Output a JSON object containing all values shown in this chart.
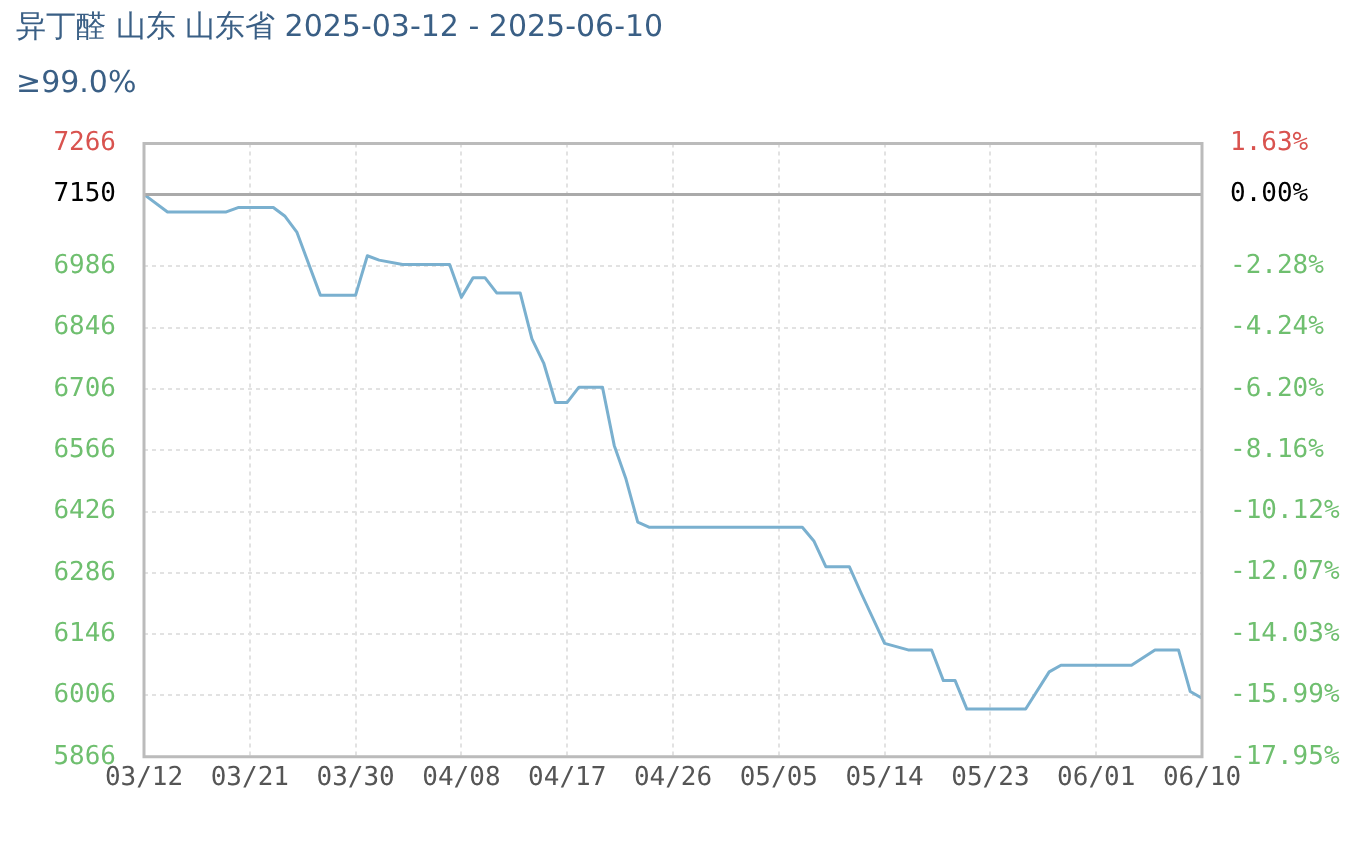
{
  "chart_data": {
    "type": "line",
    "title": "异丁醛 山东 山东省 2025-03-12 - 2025-06-10",
    "subtitle": "≥99.0%",
    "x": [
      "2025-03-12",
      "2025-03-14",
      "2025-03-19",
      "2025-03-20",
      "2025-03-23",
      "2025-03-24",
      "2025-03-25",
      "2025-03-27",
      "2025-03-30",
      "2025-03-31",
      "2025-04-01",
      "2025-04-03",
      "2025-04-07",
      "2025-04-08",
      "2025-04-09",
      "2025-04-10",
      "2025-04-11",
      "2025-04-13",
      "2025-04-14",
      "2025-04-15",
      "2025-04-16",
      "2025-04-17",
      "2025-04-18",
      "2025-04-20",
      "2025-04-21",
      "2025-04-22",
      "2025-04-23",
      "2025-04-24",
      "2025-05-07",
      "2025-05-08",
      "2025-05-09",
      "2025-05-11",
      "2025-05-12",
      "2025-05-14",
      "2025-05-16",
      "2025-05-18",
      "2025-05-19",
      "2025-05-20",
      "2025-05-21",
      "2025-05-26",
      "2025-05-28",
      "2025-05-29",
      "2025-06-04",
      "2025-06-06",
      "2025-06-08",
      "2025-06-09",
      "2025-06-10"
    ],
    "series": [
      {
        "color": "#7ab0cf",
        "values": [
          7150,
          7110,
          7110,
          7120,
          7120,
          7100,
          7064,
          6920,
          6920,
          7010,
          7000,
          6990,
          6990,
          6915,
          6960,
          6960,
          6925,
          6925,
          6820,
          6765,
          6675,
          6675,
          6710,
          6710,
          6577,
          6500,
          6402,
          6390,
          6390,
          6358,
          6300,
          6300,
          6240,
          6125,
          6110,
          6110,
          6040,
          6040,
          5975,
          5975,
          6060,
          6075,
          6075,
          6110,
          6110,
          6015,
          6000
        ]
      }
    ],
    "xlim": [
      "2025-03-12",
      "2025-06-10"
    ],
    "xticks": [
      {
        "value": "2025-03-12",
        "label": "03/12"
      },
      {
        "value": "2025-03-21",
        "label": "03/21"
      },
      {
        "value": "2025-03-30",
        "label": "03/30"
      },
      {
        "value": "2025-04-08",
        "label": "04/08"
      },
      {
        "value": "2025-04-17",
        "label": "04/17"
      },
      {
        "value": "2025-04-26",
        "label": "04/26"
      },
      {
        "value": "2025-05-05",
        "label": "05/05"
      },
      {
        "value": "2025-05-14",
        "label": "05/14"
      },
      {
        "value": "2025-05-23",
        "label": "05/23"
      },
      {
        "value": "2025-06-01",
        "label": "06/01"
      },
      {
        "value": "2025-06-10",
        "label": "06/10"
      }
    ],
    "ylim": [
      5866,
      7266
    ],
    "yticks": [
      5866,
      6006,
      6146,
      6286,
      6426,
      6566,
      6706,
      6846,
      6986,
      7150,
      7266
    ],
    "y2lim": [
      -17.95,
      1.63
    ],
    "y2ticks": [
      {
        "value": -17.95,
        "label": "-17.95%"
      },
      {
        "value": -15.99,
        "label": "-15.99%"
      },
      {
        "value": -14.03,
        "label": "-14.03%"
      },
      {
        "value": -12.07,
        "label": "-12.07%"
      },
      {
        "value": -10.12,
        "label": "-10.12%"
      },
      {
        "value": -8.16,
        "label": "-8.16%"
      },
      {
        "value": -6.2,
        "label": "-6.20%"
      },
      {
        "value": -4.24,
        "label": "-4.24%"
      },
      {
        "value": -2.28,
        "label": "-2.28%"
      },
      {
        "value": 0,
        "label": "0.00%"
      },
      {
        "value": 1.63,
        "label": "1.63%"
      }
    ],
    "ref_lines": [
      {
        "axis": "y",
        "value": 7150,
        "color": "#aaaaaa"
      }
    ],
    "grid": true,
    "legend": false,
    "marker": "none",
    "line_style": "solid"
  }
}
